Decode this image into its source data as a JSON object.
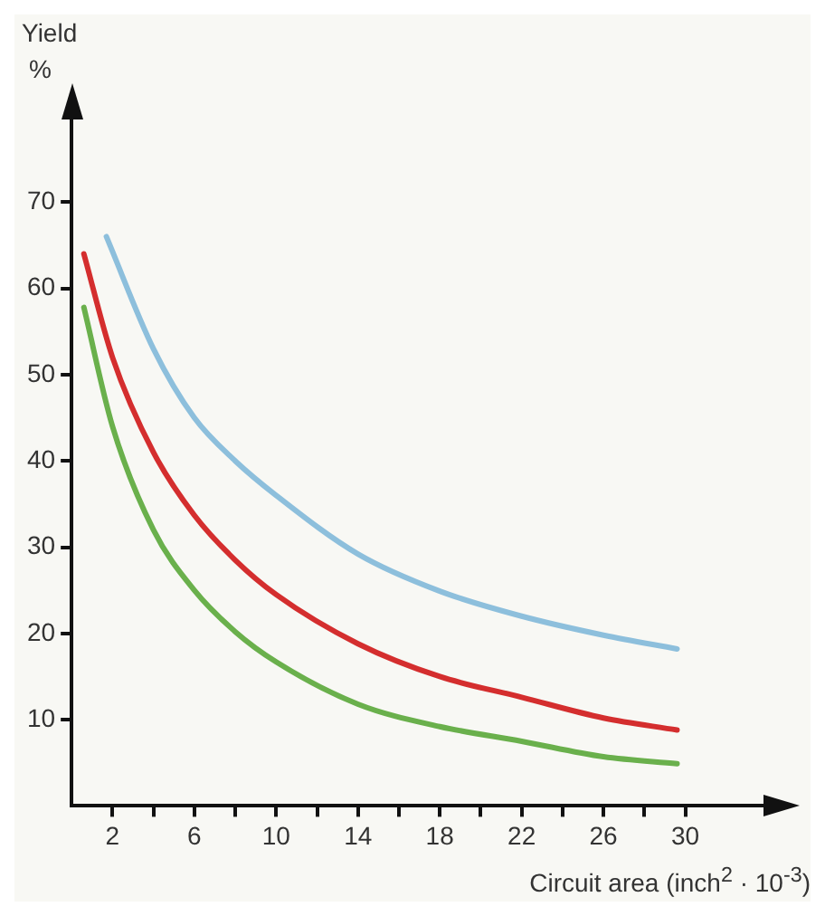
{
  "chart_data": {
    "type": "line",
    "xlabel": "Circuit area (inch$^{2}$ · 10$^{-3}$)",
    "ylabel": "Yield %",
    "xlim": [
      0,
      34
    ],
    "ylim": [
      0,
      80
    ],
    "xticks": [
      2,
      {
        "value": 4,
        "label": null
      },
      6,
      {
        "value": 8,
        "label": null
      },
      10,
      {
        "value": 12,
        "label": null
      },
      14,
      {
        "value": 16,
        "label": null
      },
      18,
      {
        "value": 20,
        "label": null
      },
      22,
      {
        "value": 24,
        "label": null
      },
      26,
      {
        "value": 28,
        "label": null
      },
      30
    ],
    "yticks": [
      10,
      20,
      30,
      40,
      50,
      60,
      70
    ],
    "grid": false,
    "legend": false,
    "marker": "none",
    "line_style": "solid",
    "series": [
      {
        "color": "#8dbfdc",
        "x": [
          1.7,
          4,
          6,
          8,
          10,
          14,
          18,
          22,
          26,
          29.6
        ],
        "values": [
          66,
          53,
          45,
          40,
          36,
          29.2,
          24.9,
          22,
          19.8,
          18.2
        ]
      },
      {
        "color": "#d42e2e",
        "x": [
          0.6,
          2,
          4,
          6,
          8,
          10,
          14,
          18,
          22,
          26,
          29.6
        ],
        "values": [
          64,
          52,
          41,
          33.7,
          28.5,
          24.5,
          18.8,
          15,
          12.6,
          10.2,
          8.8
        ]
      },
      {
        "color": "#6ab04c",
        "x": [
          0.6,
          2,
          4,
          6,
          8,
          10,
          14,
          18,
          22,
          26,
          29.6
        ],
        "values": [
          57.8,
          44,
          32,
          25,
          20.2,
          16.7,
          11.8,
          9.2,
          7.5,
          5.7,
          4.9
        ]
      }
    ]
  }
}
